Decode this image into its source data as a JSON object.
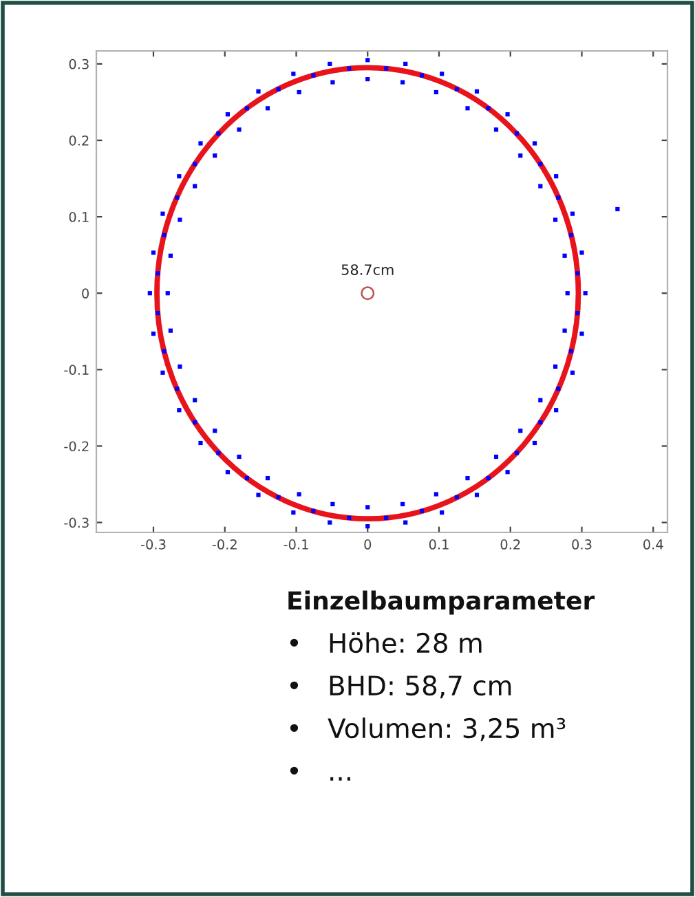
{
  "chart_data": {
    "type": "scatter",
    "xlim": [
      -0.38,
      0.42
    ],
    "ylim": [
      -0.313,
      0.317
    ],
    "xticks": [
      -0.3,
      -0.2,
      -0.1,
      0,
      0.1,
      0.2,
      0.3,
      0.4
    ],
    "yticks": [
      -0.3,
      -0.2,
      -0.1,
      0,
      0.1,
      0.2,
      0.3
    ],
    "grid": false,
    "legend": false,
    "series": [
      {
        "color": "#0000ff",
        "marker": "square",
        "x": [
          0.28,
          0.276,
          0.263,
          0.242,
          0.214,
          0.18,
          0.14,
          0.096,
          0.049,
          0,
          0.305,
          0.3,
          0.287,
          0.264,
          0.234,
          0.196,
          0.153,
          0.104,
          0.053,
          0,
          0.294,
          0.285,
          0.267,
          0.242,
          0.209,
          0.169,
          0.125,
          0.076,
          0.026,
          -0.28,
          -0.276,
          -0.263,
          -0.242,
          -0.214,
          -0.18,
          -0.14,
          -0.096,
          -0.049,
          -0.305,
          -0.3,
          -0.287,
          -0.264,
          -0.234,
          -0.196,
          -0.153,
          -0.104,
          -0.053,
          -0.294,
          -0.285,
          -0.267,
          -0.242,
          -0.209,
          -0.169,
          -0.125,
          -0.076,
          -0.026,
          -0.276,
          -0.263,
          -0.242,
          -0.214,
          -0.18,
          -0.14,
          -0.096,
          -0.049,
          -0.3,
          -0.287,
          -0.264,
          -0.234,
          -0.196,
          -0.153,
          -0.104,
          -0.053,
          -0.294,
          -0.285,
          -0.267,
          -0.242,
          -0.209,
          -0.169,
          -0.125,
          -0.076,
          -0.026,
          0.276,
          0.263,
          0.242,
          0.214,
          0.18,
          0.14,
          0.096,
          0.049,
          0,
          0.3,
          0.287,
          0.264,
          0.234,
          0.196,
          0.153,
          0.104,
          0.053,
          0,
          0.294,
          0.285,
          0.267,
          0.242,
          0.209,
          0.169,
          0.125,
          0.076,
          0.026,
          0.35
        ],
        "values": [
          0,
          0.049,
          0.096,
          0.14,
          0.18,
          0.214,
          0.242,
          0.263,
          0.276,
          0.28,
          0,
          0.053,
          0.104,
          0.153,
          0.196,
          0.234,
          0.264,
          0.287,
          0.3,
          0.305,
          0.026,
          0.076,
          0.125,
          0.169,
          0.209,
          0.242,
          0.267,
          0.285,
          0.294,
          0,
          0.049,
          0.096,
          0.14,
          0.18,
          0.214,
          0.242,
          0.263,
          0.276,
          0,
          0.053,
          0.104,
          0.153,
          0.196,
          0.234,
          0.264,
          0.287,
          0.3,
          0.026,
          0.076,
          0.125,
          0.169,
          0.209,
          0.242,
          0.267,
          0.285,
          0.294,
          -0.049,
          -0.096,
          -0.14,
          -0.18,
          -0.214,
          -0.242,
          -0.263,
          -0.276,
          -0.053,
          -0.104,
          -0.153,
          -0.196,
          -0.234,
          -0.264,
          -0.287,
          -0.3,
          -0.026,
          -0.076,
          -0.125,
          -0.169,
          -0.209,
          -0.242,
          -0.267,
          -0.285,
          -0.294,
          -0.049,
          -0.096,
          -0.14,
          -0.18,
          -0.214,
          -0.242,
          -0.263,
          -0.276,
          -0.28,
          -0.053,
          -0.104,
          -0.153,
          -0.196,
          -0.234,
          -0.264,
          -0.287,
          -0.3,
          -0.305,
          -0.026,
          -0.076,
          -0.125,
          -0.169,
          -0.209,
          -0.242,
          -0.267,
          -0.285,
          -0.294,
          0.11
        ]
      },
      {
        "type": "scatter",
        "color": "#c0504d",
        "marker": "circle",
        "x": [
          0
        ],
        "values": [
          0
        ]
      }
    ],
    "annotations": [
      {
        "text": "58.7cm",
        "x": 0,
        "y": 0
      },
      "Einzelbaumparameter",
      "•   Höhe: 28 m",
      "•   BHD: 58,7 cm",
      "•   Volumen: 3,25 m³",
      "•   ..."
    ]
  }
}
